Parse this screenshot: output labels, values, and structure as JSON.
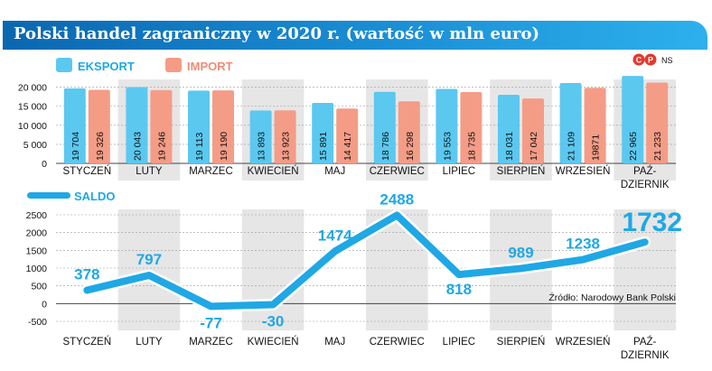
{
  "title": "Polski handel zagraniczny w 2020 r. (wartość w mln euro)",
  "legend": {
    "export": "EKSPORT",
    "import": "IMPORT",
    "saldo": "SALDO"
  },
  "badge": {
    "c": "C",
    "p": "P",
    "ns": "NS"
  },
  "source": "Źródło: Narodowy Bank Polski",
  "colors": {
    "export": "#5bc8f0",
    "import": "#f49c86",
    "saldo": "#1fa8e5",
    "band": "#e6e6e6"
  },
  "chart_data": [
    {
      "type": "bar",
      "categories": [
        "STYCZEŃ",
        "LUTY",
        "MARZEC",
        "KWIECIEŃ",
        "MAJ",
        "CZERWIEC",
        "LIPIEC",
        "SIERPIEŃ",
        "WRZESIEŃ",
        "PAŹ-\nDZIERNIK"
      ],
      "series": [
        {
          "name": "EKSPORT",
          "values": [
            19704,
            20043,
            19113,
            13893,
            15891,
            18786,
            19553,
            18031,
            21109,
            22965
          ],
          "labels": [
            "19 704",
            "20 043",
            "19 113",
            "13 893",
            "15 891",
            "18 786",
            "19 553",
            "18 031",
            "21 109",
            "22 965"
          ]
        },
        {
          "name": "IMPORT",
          "values": [
            19326,
            19246,
            19190,
            13923,
            14417,
            16298,
            18735,
            17042,
            19871,
            21233
          ],
          "labels": [
            "19 326",
            "19 246",
            "19 190",
            "13 923",
            "14 417",
            "16 298",
            "18 735",
            "17 042",
            "19871",
            "21 233"
          ]
        }
      ],
      "yticks": [
        "20 000",
        "15 000",
        "10 000",
        "5 000",
        "0"
      ],
      "ylim": [
        0,
        23000
      ]
    },
    {
      "type": "line",
      "categories": [
        "STYCZEŃ",
        "LUTY",
        "MARZEC",
        "KWIECIEŃ",
        "MAJ",
        "CZERWIEC",
        "LIPIEC",
        "SIERPIEŃ",
        "WRZESIEŃ",
        "PAŹ-\nDZIERNIK"
      ],
      "series": [
        {
          "name": "SALDO",
          "values": [
            378,
            797,
            -77,
            -30,
            1474,
            2488,
            818,
            989,
            1238,
            1732
          ]
        }
      ],
      "yticks": [
        "2500",
        "2000",
        "1500",
        "1000",
        "500",
        "0",
        "-500"
      ],
      "ylim": [
        -500,
        2500
      ]
    }
  ]
}
